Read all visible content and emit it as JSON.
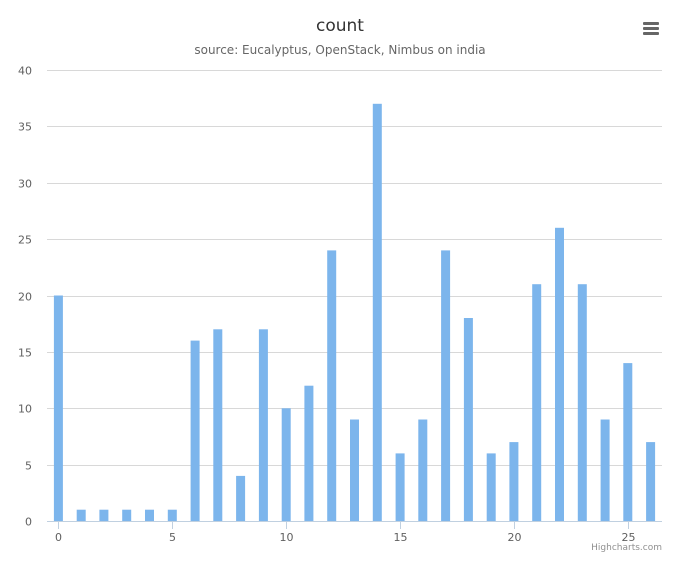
{
  "chart": {
    "title": "count",
    "subtitle": "source: Eucalyptus, OpenStack, Nimbus on india",
    "credits": "Highcharts.com",
    "menu_icon": "hamburger-menu-icon"
  },
  "chart_data": {
    "type": "bar",
    "x": [
      0,
      1,
      2,
      3,
      4,
      5,
      6,
      7,
      8,
      9,
      10,
      11,
      12,
      13,
      14,
      15,
      16,
      17,
      18,
      19,
      20,
      21,
      22,
      23,
      24,
      25,
      26
    ],
    "values": [
      20,
      1,
      1,
      1,
      1,
      1,
      16,
      17,
      4,
      17,
      10,
      12,
      24,
      9,
      37,
      6,
      9,
      24,
      18,
      6,
      7,
      21,
      26,
      21,
      9,
      14,
      7
    ],
    "title": "count",
    "subtitle": "source: Eucalyptus, OpenStack, Nimbus on india",
    "xlabel": "",
    "ylabel": "",
    "ylim": [
      0,
      40
    ],
    "xlim": [
      -0.5,
      26.5
    ],
    "y_ticks": [
      0,
      5,
      10,
      15,
      20,
      25,
      30,
      35,
      40
    ],
    "x_ticks": [
      0,
      5,
      10,
      15,
      20,
      25
    ],
    "grid": true,
    "legend": "none",
    "bar_color": "#7cb5ec"
  }
}
